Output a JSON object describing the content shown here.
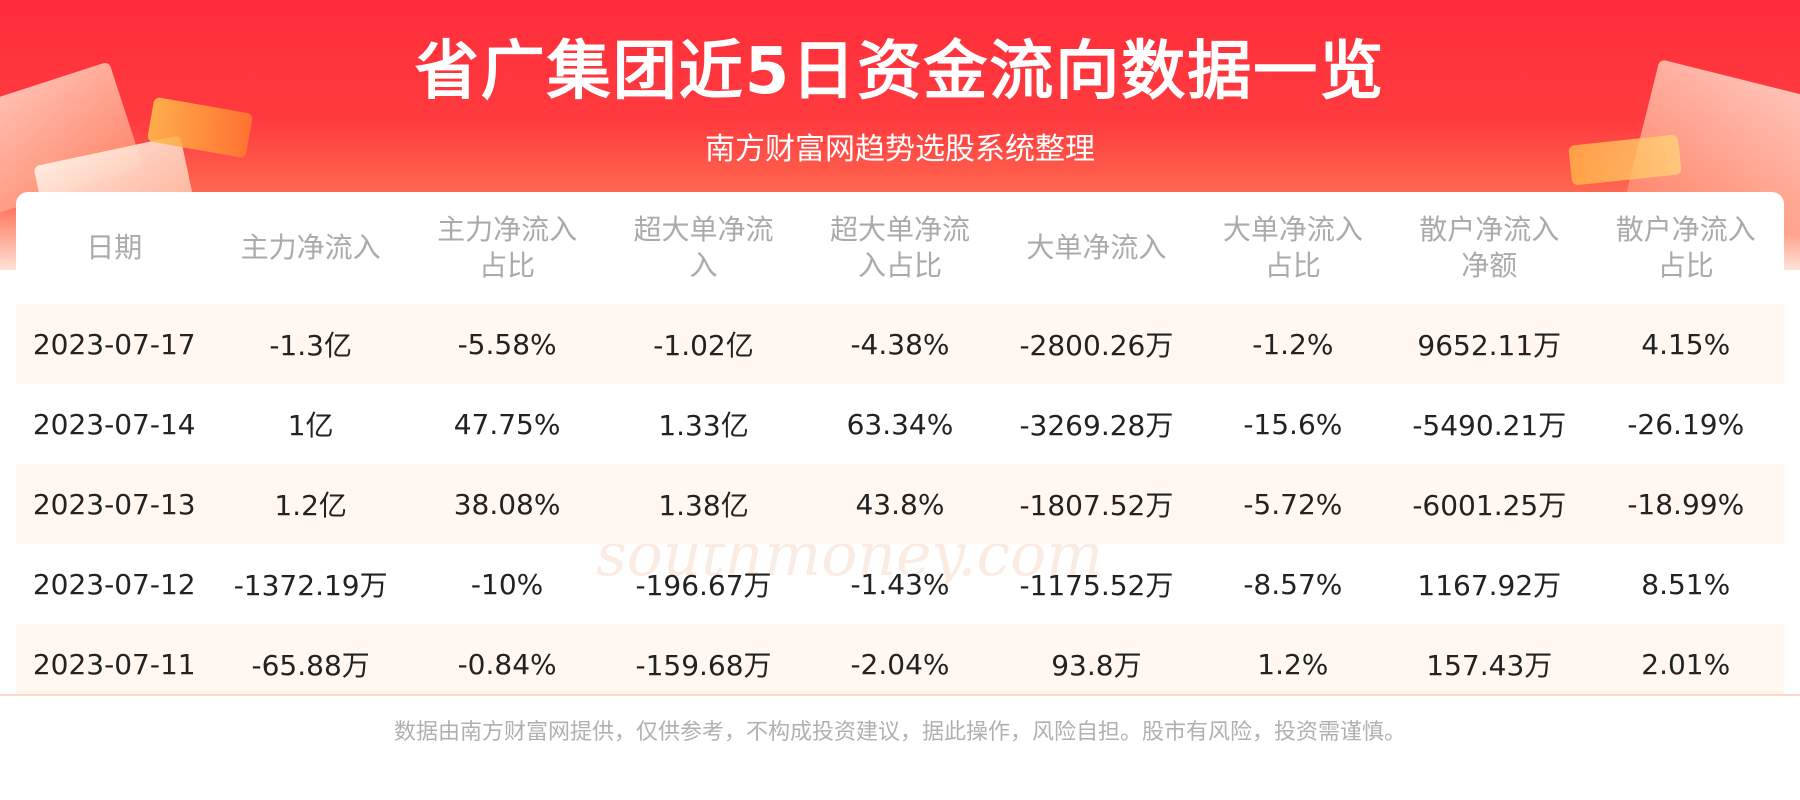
{
  "header": {
    "title": "省广集团近5日资金流向数据一览",
    "subtitle": "南方财富网趋势选股系统整理"
  },
  "table": {
    "columns": [
      "日期",
      "主力净流入",
      "主力净流入占比",
      "超大单净流入",
      "超大单净流入占比",
      "大单净流入",
      "大单净流入占比",
      "散户净流入净额",
      "散户净流入占比"
    ],
    "rows": [
      [
        "2023-07-17",
        "-1.3亿",
        "-5.58%",
        "-1.02亿",
        "-4.38%",
        "-2800.26万",
        "-1.2%",
        "9652.11万",
        "4.15%"
      ],
      [
        "2023-07-14",
        "1亿",
        "47.75%",
        "1.33亿",
        "63.34%",
        "-3269.28万",
        "-15.6%",
        "-5490.21万",
        "-26.19%"
      ],
      [
        "2023-07-13",
        "1.2亿",
        "38.08%",
        "1.38亿",
        "43.8%",
        "-1807.52万",
        "-5.72%",
        "-6001.25万",
        "-18.99%"
      ],
      [
        "2023-07-12",
        "-1372.19万",
        "-10%",
        "-196.67万",
        "-1.43%",
        "-1175.52万",
        "-8.57%",
        "1167.92万",
        "8.51%"
      ],
      [
        "2023-07-11",
        "-65.88万",
        "-0.84%",
        "-159.68万",
        "-2.04%",
        "93.8万",
        "1.2%",
        "157.43万",
        "2.01%"
      ]
    ]
  },
  "watermark": {
    "name": "南方财富网",
    "domain": "southmoney.com"
  },
  "footer": {
    "disclaimer": "数据由南方财富网提供，仅供参考，不构成投资建议，据此操作，风险自担。股市有风险，投资需谨慎。"
  },
  "colors": {
    "banner_red": "#ff2d3a",
    "row_stripe": "#fff7f0",
    "header_text": "#aaaaaa"
  }
}
